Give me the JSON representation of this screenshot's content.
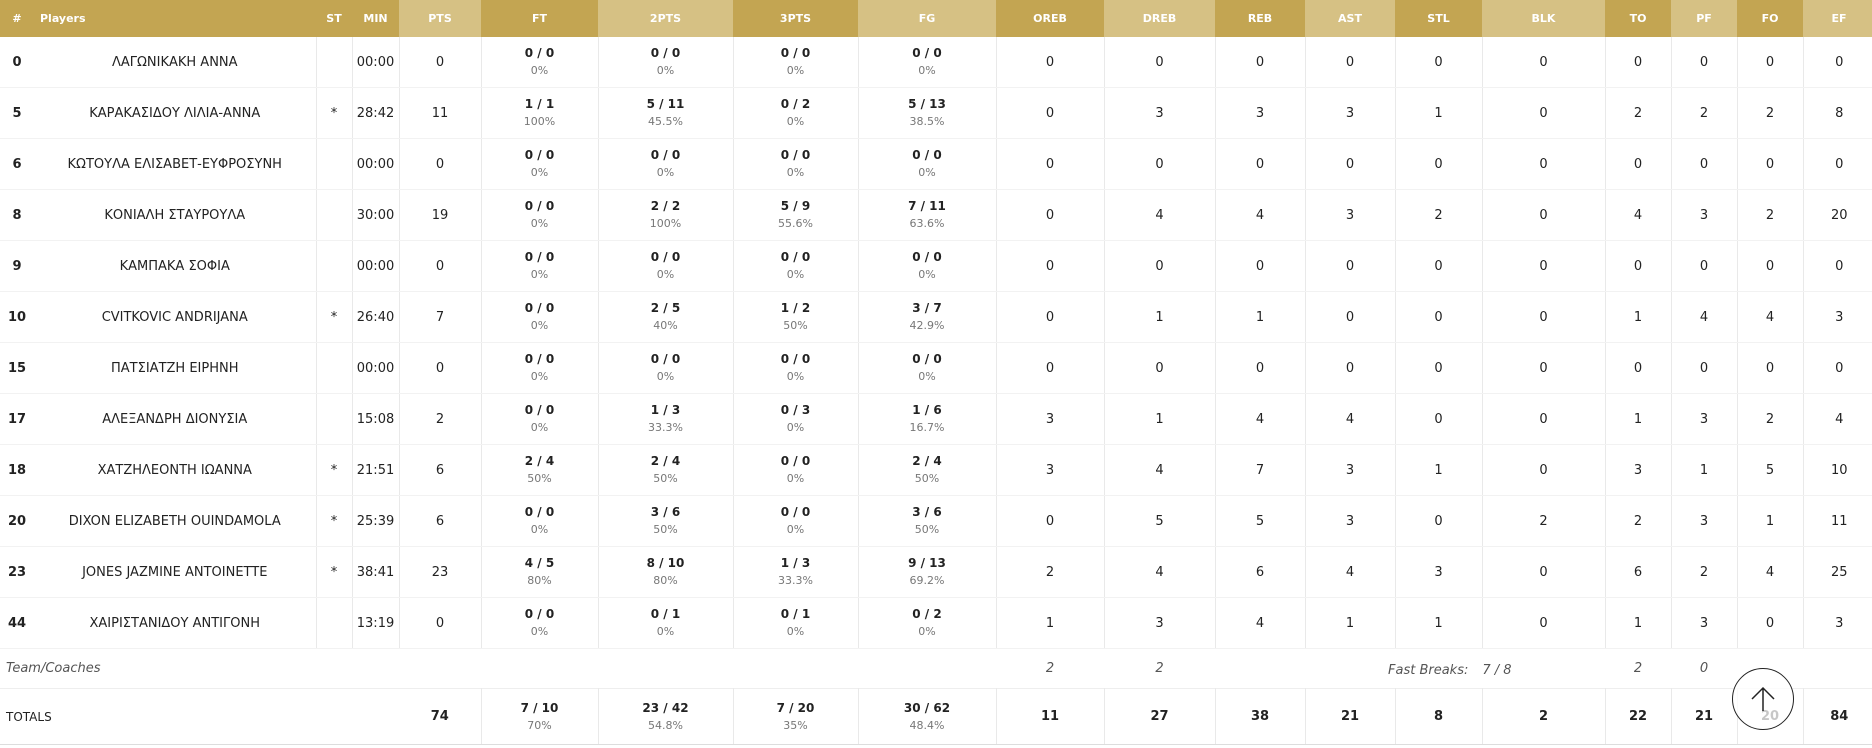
{
  "headers": {
    "num": "#",
    "players": "Players",
    "st": "ST",
    "min": "MIN",
    "pts": "PTS",
    "ft": "FT",
    "p2": "2PTS",
    "p3": "3PTS",
    "fg": "FG",
    "oreb": "OREB",
    "dreb": "DREB",
    "reb": "REB",
    "ast": "AST",
    "stl": "STL",
    "blk": "BLK",
    "to": "TO",
    "pf": "PF",
    "fo": "FO",
    "ef": "EF"
  },
  "players": [
    {
      "num": "0",
      "name": "ΛΑΓΩΝΙΚΑΚΗ ΑΝΝΑ",
      "st": "",
      "min": "00:00",
      "pts": "0",
      "ft": "0 / 0",
      "ft_pct": "0%",
      "p2": "0 / 0",
      "p2_pct": "0%",
      "p3": "0 / 0",
      "p3_pct": "0%",
      "fg": "0 / 0",
      "fg_pct": "0%",
      "oreb": "0",
      "dreb": "0",
      "reb": "0",
      "ast": "0",
      "stl": "0",
      "blk": "0",
      "to": "0",
      "pf": "0",
      "fo": "0",
      "ef": "0"
    },
    {
      "num": "5",
      "name": "ΚΑΡΑΚΑΣΙΔΟΥ ΛΙΛΙΑ-ΑΝΝΑ",
      "st": "*",
      "min": "28:42",
      "pts": "11",
      "ft": "1 / 1",
      "ft_pct": "100%",
      "p2": "5 / 11",
      "p2_pct": "45.5%",
      "p3": "0 / 2",
      "p3_pct": "0%",
      "fg": "5 / 13",
      "fg_pct": "38.5%",
      "oreb": "0",
      "dreb": "3",
      "reb": "3",
      "ast": "3",
      "stl": "1",
      "blk": "0",
      "to": "2",
      "pf": "2",
      "fo": "2",
      "ef": "8"
    },
    {
      "num": "6",
      "name": "ΚΩΤΟΥΛΑ ΕΛΙΣΑΒΕΤ-ΕΥΦΡΟΣΥΝΗ",
      "st": "",
      "min": "00:00",
      "pts": "0",
      "ft": "0 / 0",
      "ft_pct": "0%",
      "p2": "0 / 0",
      "p2_pct": "0%",
      "p3": "0 / 0",
      "p3_pct": "0%",
      "fg": "0 / 0",
      "fg_pct": "0%",
      "oreb": "0",
      "dreb": "0",
      "reb": "0",
      "ast": "0",
      "stl": "0",
      "blk": "0",
      "to": "0",
      "pf": "0",
      "fo": "0",
      "ef": "0"
    },
    {
      "num": "8",
      "name": "ΚΟΝΙΑΛΗ ΣΤΑΥΡΟΥΛΑ",
      "st": "",
      "min": "30:00",
      "pts": "19",
      "ft": "0 / 0",
      "ft_pct": "0%",
      "p2": "2 / 2",
      "p2_pct": "100%",
      "p3": "5 / 9",
      "p3_pct": "55.6%",
      "fg": "7 / 11",
      "fg_pct": "63.6%",
      "oreb": "0",
      "dreb": "4",
      "reb": "4",
      "ast": "3",
      "stl": "2",
      "blk": "0",
      "to": "4",
      "pf": "3",
      "fo": "2",
      "ef": "20"
    },
    {
      "num": "9",
      "name": "ΚΑΜΠΑΚΑ ΣΟΦΙΑ",
      "st": "",
      "min": "00:00",
      "pts": "0",
      "ft": "0 / 0",
      "ft_pct": "0%",
      "p2": "0 / 0",
      "p2_pct": "0%",
      "p3": "0 / 0",
      "p3_pct": "0%",
      "fg": "0 / 0",
      "fg_pct": "0%",
      "oreb": "0",
      "dreb": "0",
      "reb": "0",
      "ast": "0",
      "stl": "0",
      "blk": "0",
      "to": "0",
      "pf": "0",
      "fo": "0",
      "ef": "0"
    },
    {
      "num": "10",
      "name": "CVITKOVIC ANDRIJANA",
      "st": "*",
      "min": "26:40",
      "pts": "7",
      "ft": "0 / 0",
      "ft_pct": "0%",
      "p2": "2 / 5",
      "p2_pct": "40%",
      "p3": "1 / 2",
      "p3_pct": "50%",
      "fg": "3 / 7",
      "fg_pct": "42.9%",
      "oreb": "0",
      "dreb": "1",
      "reb": "1",
      "ast": "0",
      "stl": "0",
      "blk": "0",
      "to": "1",
      "pf": "4",
      "fo": "4",
      "ef": "3"
    },
    {
      "num": "15",
      "name": "ΠΑΤΣΙΑΤΖΗ ΕΙΡΗΝΗ",
      "st": "",
      "min": "00:00",
      "pts": "0",
      "ft": "0 / 0",
      "ft_pct": "0%",
      "p2": "0 / 0",
      "p2_pct": "0%",
      "p3": "0 / 0",
      "p3_pct": "0%",
      "fg": "0 / 0",
      "fg_pct": "0%",
      "oreb": "0",
      "dreb": "0",
      "reb": "0",
      "ast": "0",
      "stl": "0",
      "blk": "0",
      "to": "0",
      "pf": "0",
      "fo": "0",
      "ef": "0"
    },
    {
      "num": "17",
      "name": "ΑΛΕΞΑΝΔΡΗ ΔΙΟΝΥΣΙΑ",
      "st": "",
      "min": "15:08",
      "pts": "2",
      "ft": "0 / 0",
      "ft_pct": "0%",
      "p2": "1 / 3",
      "p2_pct": "33.3%",
      "p3": "0 / 3",
      "p3_pct": "0%",
      "fg": "1 / 6",
      "fg_pct": "16.7%",
      "oreb": "3",
      "dreb": "1",
      "reb": "4",
      "ast": "4",
      "stl": "0",
      "blk": "0",
      "to": "1",
      "pf": "3",
      "fo": "2",
      "ef": "4"
    },
    {
      "num": "18",
      "name": "ΧΑΤΖΗΛΕΟΝΤΗ ΙΩΑΝΝΑ",
      "st": "*",
      "min": "21:51",
      "pts": "6",
      "ft": "2 / 4",
      "ft_pct": "50%",
      "p2": "2 / 4",
      "p2_pct": "50%",
      "p3": "0 / 0",
      "p3_pct": "0%",
      "fg": "2 / 4",
      "fg_pct": "50%",
      "oreb": "3",
      "dreb": "4",
      "reb": "7",
      "ast": "3",
      "stl": "1",
      "blk": "0",
      "to": "3",
      "pf": "1",
      "fo": "5",
      "ef": "10"
    },
    {
      "num": "20",
      "name": "DIXON ELIZABETH OUINDAMOLA",
      "st": "*",
      "min": "25:39",
      "pts": "6",
      "ft": "0 / 0",
      "ft_pct": "0%",
      "p2": "3 / 6",
      "p2_pct": "50%",
      "p3": "0 / 0",
      "p3_pct": "0%",
      "fg": "3 / 6",
      "fg_pct": "50%",
      "oreb": "0",
      "dreb": "5",
      "reb": "5",
      "ast": "3",
      "stl": "0",
      "blk": "2",
      "to": "2",
      "pf": "3",
      "fo": "1",
      "ef": "11"
    },
    {
      "num": "23",
      "name": "JONES JAZMINE ANTOINETTE",
      "st": "*",
      "min": "38:41",
      "pts": "23",
      "ft": "4 / 5",
      "ft_pct": "80%",
      "p2": "8 / 10",
      "p2_pct": "80%",
      "p3": "1 / 3",
      "p3_pct": "33.3%",
      "fg": "9 / 13",
      "fg_pct": "69.2%",
      "oreb": "2",
      "dreb": "4",
      "reb": "6",
      "ast": "4",
      "stl": "3",
      "blk": "0",
      "to": "6",
      "pf": "2",
      "fo": "4",
      "ef": "25"
    },
    {
      "num": "44",
      "name": "ΧΑΙΡΙΣΤΑΝΙΔΟΥ ΑΝΤΙΓΟΝΗ",
      "st": "",
      "min": "13:19",
      "pts": "0",
      "ft": "0 / 0",
      "ft_pct": "0%",
      "p2": "0 / 1",
      "p2_pct": "0%",
      "p3": "0 / 1",
      "p3_pct": "0%",
      "fg": "0 / 2",
      "fg_pct": "0%",
      "oreb": "1",
      "dreb": "3",
      "reb": "4",
      "ast": "1",
      "stl": "1",
      "blk": "0",
      "to": "1",
      "pf": "3",
      "fo": "0",
      "ef": "3"
    }
  ],
  "team": {
    "label": "Team/Coaches",
    "oreb": "2",
    "dreb": "2",
    "fast_breaks_label": "Fast Breaks:",
    "fast_breaks_value": "7 / 8",
    "to": "2",
    "pf": "0"
  },
  "totals": {
    "label": "TOTALS",
    "pts": "74",
    "ft": "7 / 10",
    "ft_pct": "70%",
    "p2": "23 / 42",
    "p2_pct": "54.8%",
    "p3": "7 / 20",
    "p3_pct": "35%",
    "fg": "30 / 62",
    "fg_pct": "48.4%",
    "oreb": "11",
    "dreb": "27",
    "reb": "38",
    "ast": "21",
    "stl": "8",
    "blk": "2",
    "to": "22",
    "pf": "21",
    "fo": "20",
    "ef": "84"
  },
  "scroll_top_icon": "arrow-up-icon"
}
